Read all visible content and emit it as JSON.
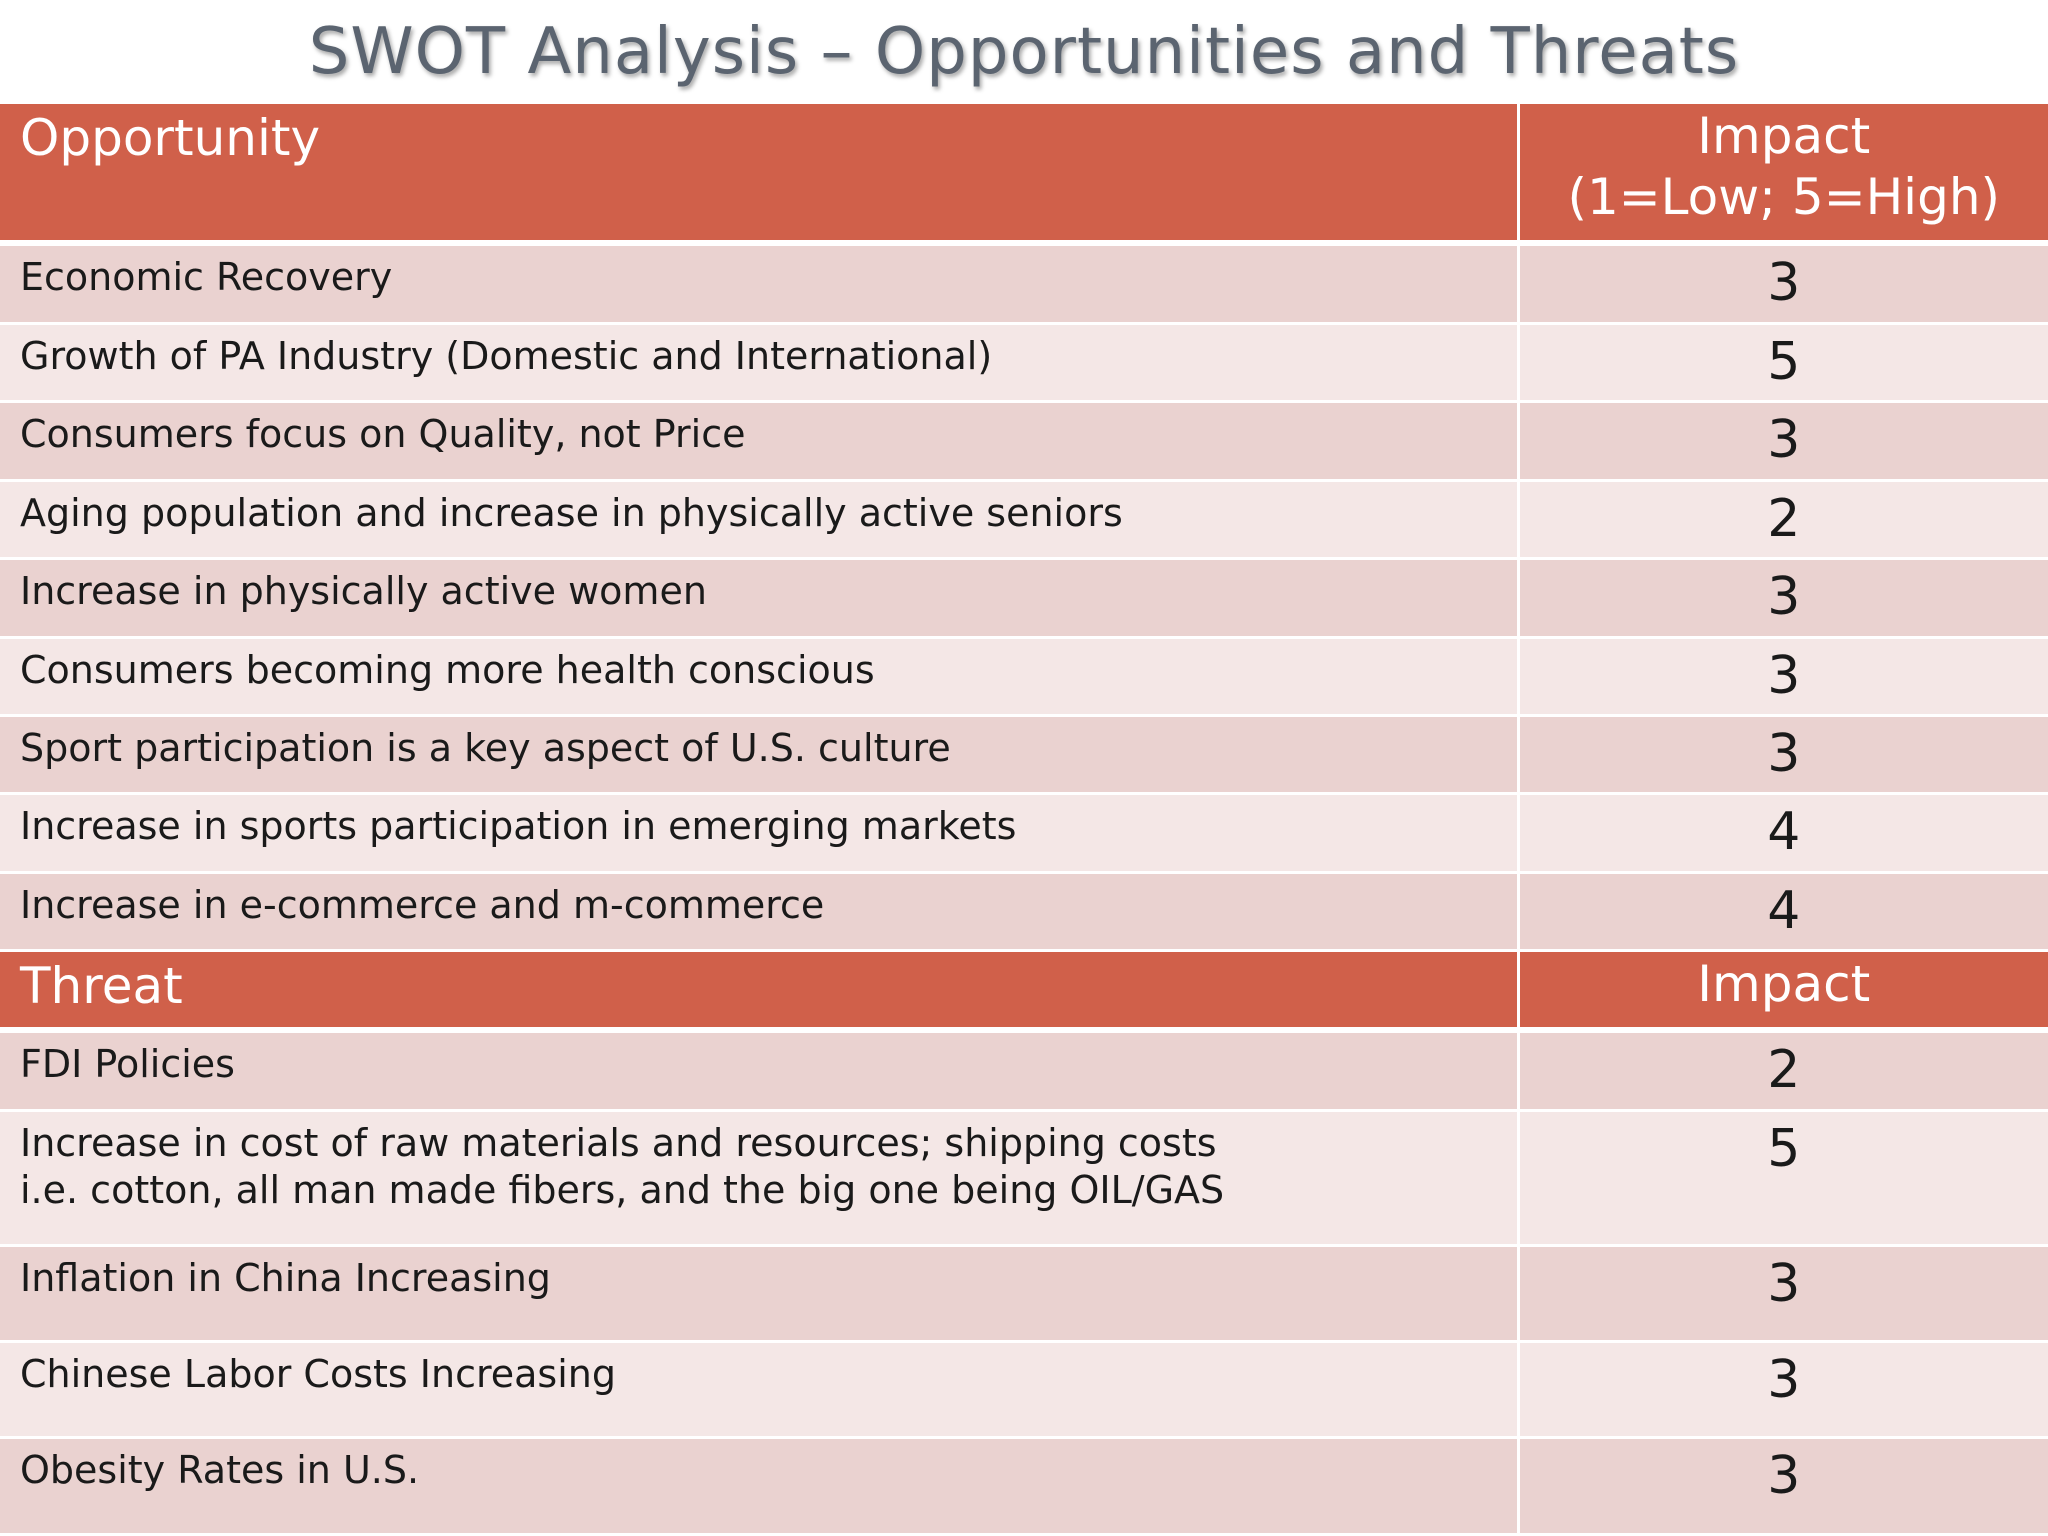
{
  "title": "SWOT Analysis – Opportunities and Threats",
  "opportunity_header": {
    "label": "Opportunity",
    "impact_line1": "Impact",
    "impact_line2": "(1=Low; 5=High)"
  },
  "opportunities": [
    {
      "text": "Economic Recovery",
      "impact": "3"
    },
    {
      "text": "Growth of PA Industry (Domestic and International)",
      "impact": "5"
    },
    {
      "text": "Consumers focus on Quality, not Price",
      "impact": "3"
    },
    {
      "text": "Aging population and increase in physically active seniors",
      "impact": "2"
    },
    {
      "text": "Increase in physically active women",
      "impact": "3"
    },
    {
      "text": "Consumers becoming more health conscious",
      "impact": "3"
    },
    {
      "text": "Sport participation is a key aspect of U.S. culture",
      "impact": "3"
    },
    {
      "text": "Increase in sports participation in emerging markets",
      "impact": "4"
    },
    {
      "text": "Increase in e-commerce and m-commerce",
      "impact": "4"
    }
  ],
  "threat_header": {
    "label": "Threat",
    "impact": "Impact"
  },
  "threats": [
    {
      "text": "FDI Policies",
      "impact": "2"
    },
    {
      "text": "Increase in cost of raw materials and resources; shipping costs\ni.e. cotton, all man made fibers,  and the big one being OIL/GAS",
      "impact": "5"
    },
    {
      "text": "Inflation in China Increasing",
      "impact": "3"
    },
    {
      "text": "Chinese Labor Costs Increasing",
      "impact": "3"
    },
    {
      "text": "Obesity Rates in U.S.",
      "impact": "3"
    }
  ],
  "colors": {
    "header": "#d0604a",
    "row_dark": "#ead2d0",
    "row_light": "#f4e7e6",
    "title_text": "#5b6470"
  }
}
